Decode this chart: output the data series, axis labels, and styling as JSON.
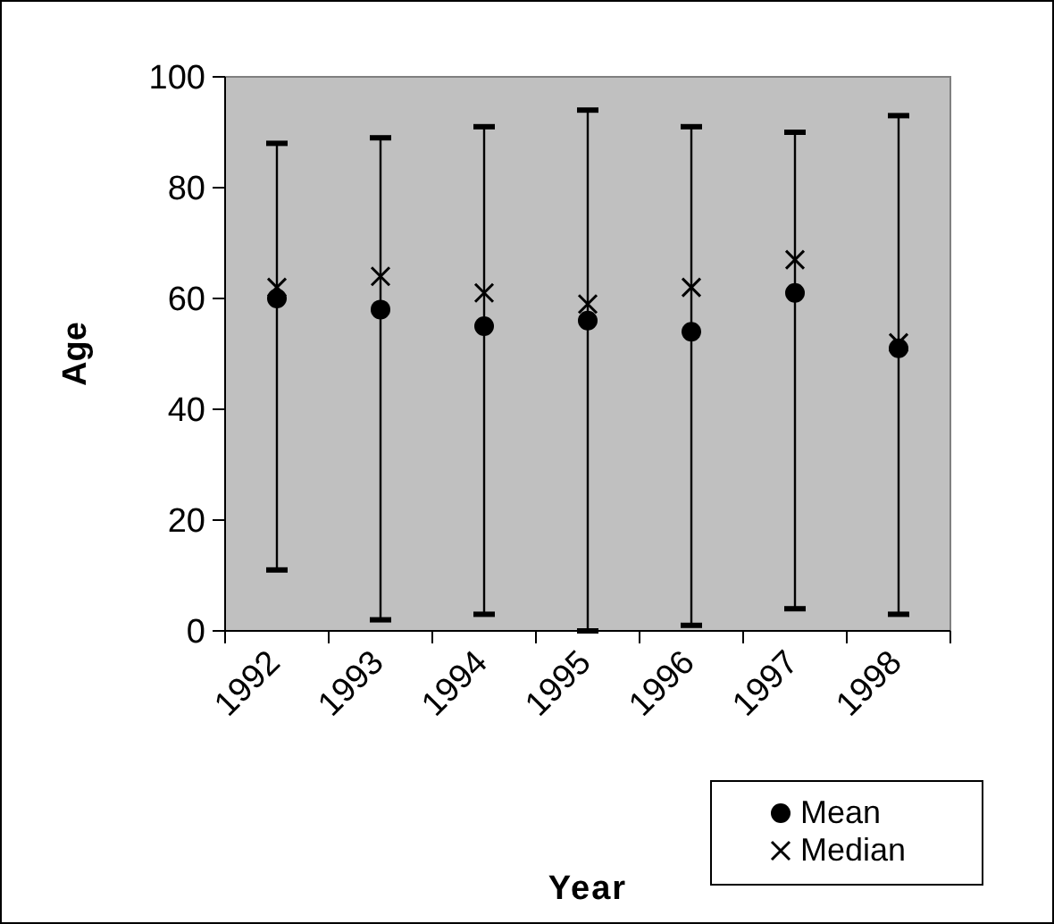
{
  "chart_data": {
    "type": "scatter",
    "xlabel": "Year",
    "ylabel": "Age",
    "categories": [
      "1992",
      "1993",
      "1994",
      "1995",
      "1996",
      "1997",
      "1998"
    ],
    "series": [
      {
        "name": "Mean",
        "color": "#000000",
        "marker": "circle",
        "values": [
          60,
          58,
          55,
          56,
          54,
          61,
          51
        ],
        "errors": [
          [
            11,
            88
          ],
          [
            2,
            89
          ],
          [
            3,
            91
          ],
          [
            0,
            94
          ],
          [
            1,
            91
          ],
          [
            4,
            90
          ],
          [
            3,
            93
          ]
        ]
      },
      {
        "name": "Median",
        "color": "#000000",
        "marker": "cross",
        "values": [
          62,
          64,
          61,
          59,
          62,
          67,
          52
        ]
      }
    ],
    "ylim": [
      0,
      100
    ],
    "yticks": [
      0,
      20,
      40,
      60,
      80,
      100
    ],
    "grid": false,
    "legend": "bottom right"
  }
}
